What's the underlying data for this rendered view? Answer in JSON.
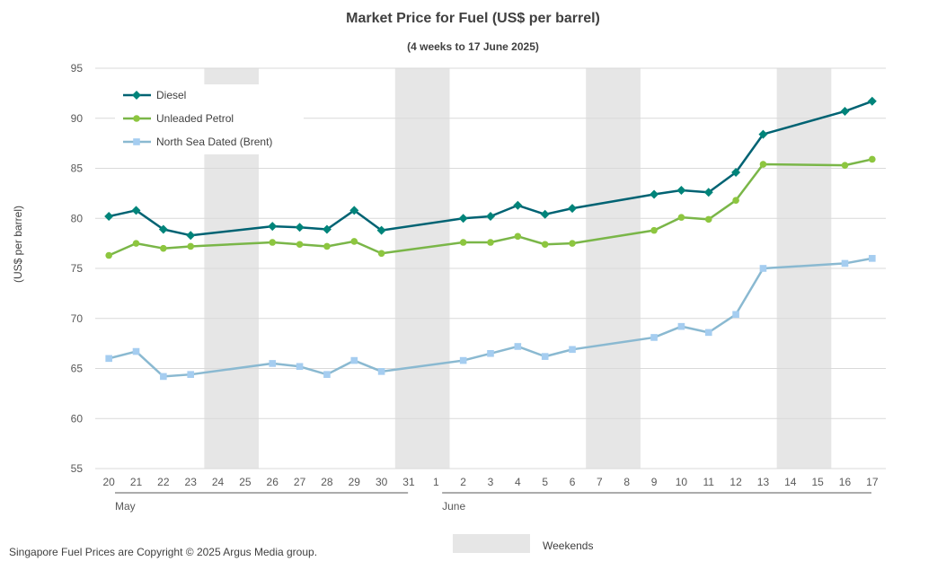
{
  "chart_data": {
    "type": "line",
    "title": "Market Price for Fuel (US$ per barrel)",
    "subtitle": "(4 weeks to 17 June 2025)",
    "ylabel": "(US$ per barrel)",
    "ylim": [
      55,
      95
    ],
    "yticks": [
      55,
      60,
      65,
      70,
      75,
      80,
      85,
      90,
      95
    ],
    "grid": true,
    "legend_position": "top-left",
    "categories": [
      "20",
      "21",
      "22",
      "23",
      "24",
      "25",
      "26",
      "27",
      "28",
      "29",
      "30",
      "31",
      "1",
      "2",
      "3",
      "4",
      "5",
      "6",
      "7",
      "8",
      "9",
      "10",
      "11",
      "12",
      "13",
      "14",
      "15",
      "16",
      "17"
    ],
    "month_groups": [
      {
        "label": "May",
        "start": 0,
        "end": 11
      },
      {
        "label": "June",
        "start": 12,
        "end": 28
      }
    ],
    "weekends": [
      [
        4,
        5
      ],
      [
        11,
        12
      ],
      [
        18,
        19
      ],
      [
        25,
        26
      ]
    ],
    "weekend_legend_label": "Weekends",
    "series": [
      {
        "name": "Diesel",
        "color": "#006373",
        "marker": "diamond",
        "values": [
          80.2,
          80.8,
          78.9,
          78.3,
          null,
          null,
          79.2,
          79.1,
          78.9,
          80.8,
          78.8,
          null,
          null,
          80.0,
          80.2,
          81.3,
          80.4,
          81.0,
          null,
          null,
          82.4,
          82.8,
          82.6,
          84.6,
          88.4,
          null,
          null,
          90.7,
          91.7
        ]
      },
      {
        "name": "Unleaded Petrol",
        "color": "#7ab648",
        "marker": "circle",
        "values": [
          76.3,
          77.5,
          77.0,
          77.2,
          null,
          null,
          77.6,
          77.4,
          77.2,
          77.7,
          76.5,
          null,
          null,
          77.6,
          77.6,
          78.2,
          77.4,
          77.5,
          null,
          null,
          78.8,
          80.1,
          79.9,
          81.8,
          85.4,
          null,
          null,
          85.3,
          85.9
        ]
      },
      {
        "name": "North Sea Dated (Brent)",
        "color": "#8ab9d1",
        "marker": "square",
        "values": [
          66.0,
          66.7,
          64.2,
          64.4,
          null,
          null,
          65.5,
          65.2,
          64.4,
          65.8,
          64.7,
          null,
          null,
          65.8,
          66.5,
          67.2,
          66.2,
          66.9,
          null,
          null,
          68.1,
          69.2,
          68.6,
          70.4,
          75.0,
          null,
          null,
          75.5,
          76.0
        ]
      }
    ],
    "marker_colors": {
      "Diesel": "#00847a",
      "Unleaded Petrol": "#8dc63f",
      "North Sea Dated (Brent)": "#a5cdf0"
    }
  },
  "footer": {
    "copyright": "Singapore Fuel Prices are Copyright © 2025 Argus Media group."
  }
}
